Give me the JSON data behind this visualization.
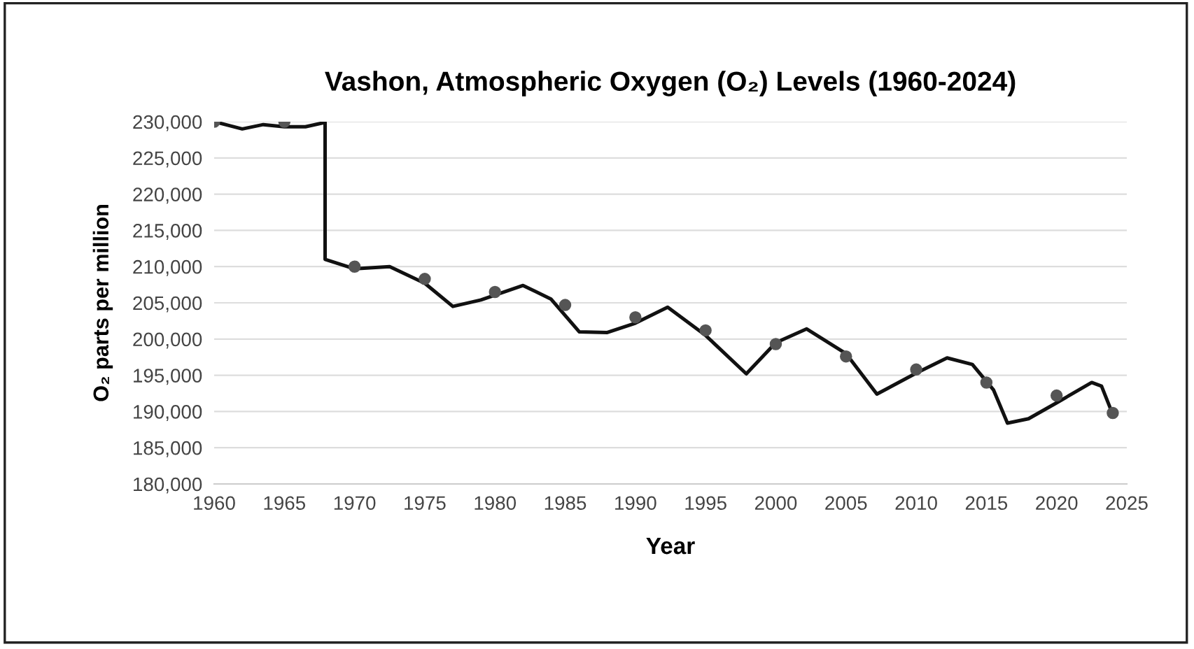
{
  "chart_data": {
    "type": "line",
    "title": "Vashon, Atmospheric Oxygen (O₂) Levels (1960-2024)",
    "xlabel": "Year",
    "ylabel": "O₂ parts per million",
    "xlim": [
      1960,
      2025
    ],
    "xticks": [
      1960,
      1965,
      1970,
      1975,
      1980,
      1985,
      1990,
      1995,
      2000,
      2005,
      2010,
      2015,
      2020,
      2025
    ],
    "ylim": [
      180000,
      230000
    ],
    "yticks": [
      {
        "value": 180000,
        "label": "180,000"
      },
      {
        "value": 185000,
        "label": "185,000"
      },
      {
        "value": 190000,
        "label": "190,000"
      },
      {
        "value": 195000,
        "label": "195,000"
      },
      {
        "value": 200000,
        "label": "200,000"
      },
      {
        "value": 205000,
        "label": "205,000"
      },
      {
        "value": 210000,
        "label": "210,000"
      },
      {
        "value": 215000,
        "label": "215,000"
      },
      {
        "value": 220000,
        "label": "220,000"
      },
      {
        "value": 225000,
        "label": "225,000"
      },
      {
        "value": 230000,
        "label": "230,000"
      }
    ],
    "grid": "y",
    "legend": false,
    "series": [
      {
        "color": "#111111",
        "marker": "none",
        "line_style": "solid",
        "x": [
          1960,
          1962,
          1963.5,
          1965,
          1966.5,
          1967.9,
          1967.9,
          1970,
          1972.5,
          1975,
          1977,
          1979,
          1982,
          1984,
          1986,
          1988,
          1990,
          1992.3,
          1995,
          1997.9,
          2000,
          2002.2,
          2005,
          2007.2,
          2010,
          2012.2,
          2014,
          2015.5,
          2016.5,
          2018,
          2020,
          2022.5,
          2023.2,
          2024
        ],
        "values": [
          230000,
          229000,
          229600,
          229300,
          229300,
          229900,
          211000,
          209700,
          210000,
          207700,
          204500,
          205400,
          207400,
          205500,
          201000,
          200900,
          202200,
          204400,
          200500,
          195200,
          199500,
          201400,
          198000,
          192400,
          195300,
          197400,
          196500,
          193000,
          188400,
          189000,
          191200,
          194000,
          193500,
          189600
        ]
      },
      {
        "type": "scatter",
        "color": "#555555",
        "marker": "circle",
        "x": [
          1960,
          1965,
          1970,
          1975,
          1980,
          1985,
          1990,
          1995,
          2000,
          2005,
          2010,
          2015,
          2020,
          2024
        ],
        "values": [
          230000,
          230000,
          210000,
          208300,
          206500,
          204700,
          203000,
          201200,
          199300,
          197600,
          195800,
          194000,
          192200,
          189800
        ]
      }
    ]
  }
}
